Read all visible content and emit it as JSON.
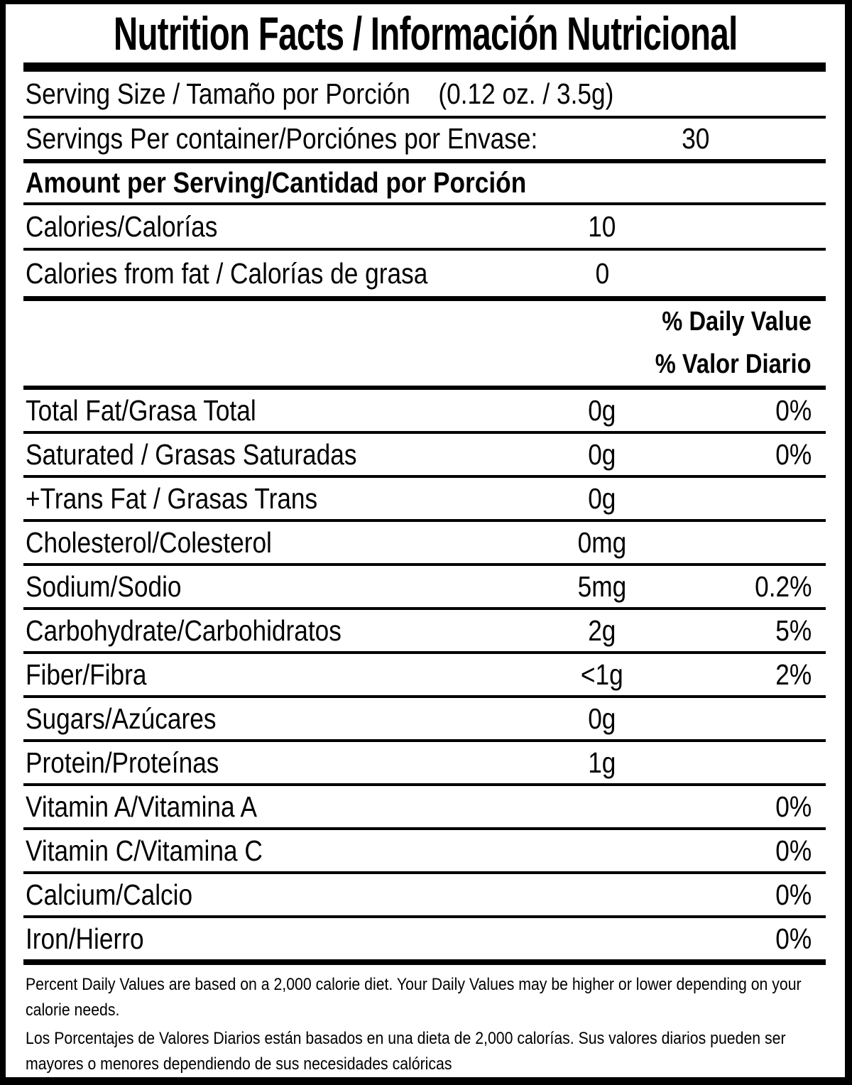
{
  "title": "Nutrition Facts / Información Nutricional",
  "serving": {
    "size_label": "Serving Size / Tamaño por Porción",
    "size_value": "(0.12 oz. / 3.5g)",
    "per_container_label": "Servings Per container/Porciónes por Envase:",
    "per_container_value": "30"
  },
  "amount_header": "Amount per Serving/Cantidad por Porción",
  "calories": {
    "label": "Calories/Calorías",
    "value": "10"
  },
  "calories_from_fat": {
    "label": "Calories from fat / Calorías de grasa",
    "value": "0"
  },
  "daily_value_header": {
    "line1": "% Daily Value",
    "line2": "% Valor Diario"
  },
  "nutrients": [
    {
      "label": "Total Fat/Grasa Total",
      "amount": "0g",
      "dv": "0%"
    },
    {
      "label": "Saturated / Grasas Saturadas",
      "amount": "0g",
      "dv": "0%"
    },
    {
      "label": "+Trans Fat / Grasas Trans",
      "amount": "0g",
      "dv": ""
    },
    {
      "label": "Cholesterol/Colesterol",
      "amount": "0mg",
      "dv": ""
    },
    {
      "label": "Sodium/Sodio",
      "amount": "5mg",
      "dv": "0.2%"
    },
    {
      "label": "Carbohydrate/Carbohidratos",
      "amount": "2g",
      "dv": "5%"
    },
    {
      "label": "Fiber/Fibra",
      "amount": "<1g",
      "dv": "2%"
    },
    {
      "label": "Sugars/Azúcares",
      "amount": "0g",
      "dv": ""
    },
    {
      "label": "Protein/Proteínas",
      "amount": "1g",
      "dv": ""
    },
    {
      "label": "Vitamin A/Vitamina A",
      "amount": "",
      "dv": "0%"
    },
    {
      "label": "Vitamin C/Vitamina C",
      "amount": "",
      "dv": "0%"
    },
    {
      "label": "Calcium/Calcio",
      "amount": "",
      "dv": "0%"
    },
    {
      "label": "Iron/Hierro",
      "amount": "",
      "dv": "0%"
    }
  ],
  "footnotes": {
    "english": "Percent Daily Values are based on a 2,000 calorie diet. Your Daily Values may be higher or lower depending on your calorie needs.",
    "spanish": "Los Porcentajes de Valores Diarios están basados en una dieta de 2,000 calorías. Sus valores diarios pueden ser mayores o menores dependiendo de sus necesidades calóricas"
  },
  "colors": {
    "ink": "#000000",
    "background": "#ffffff"
  }
}
